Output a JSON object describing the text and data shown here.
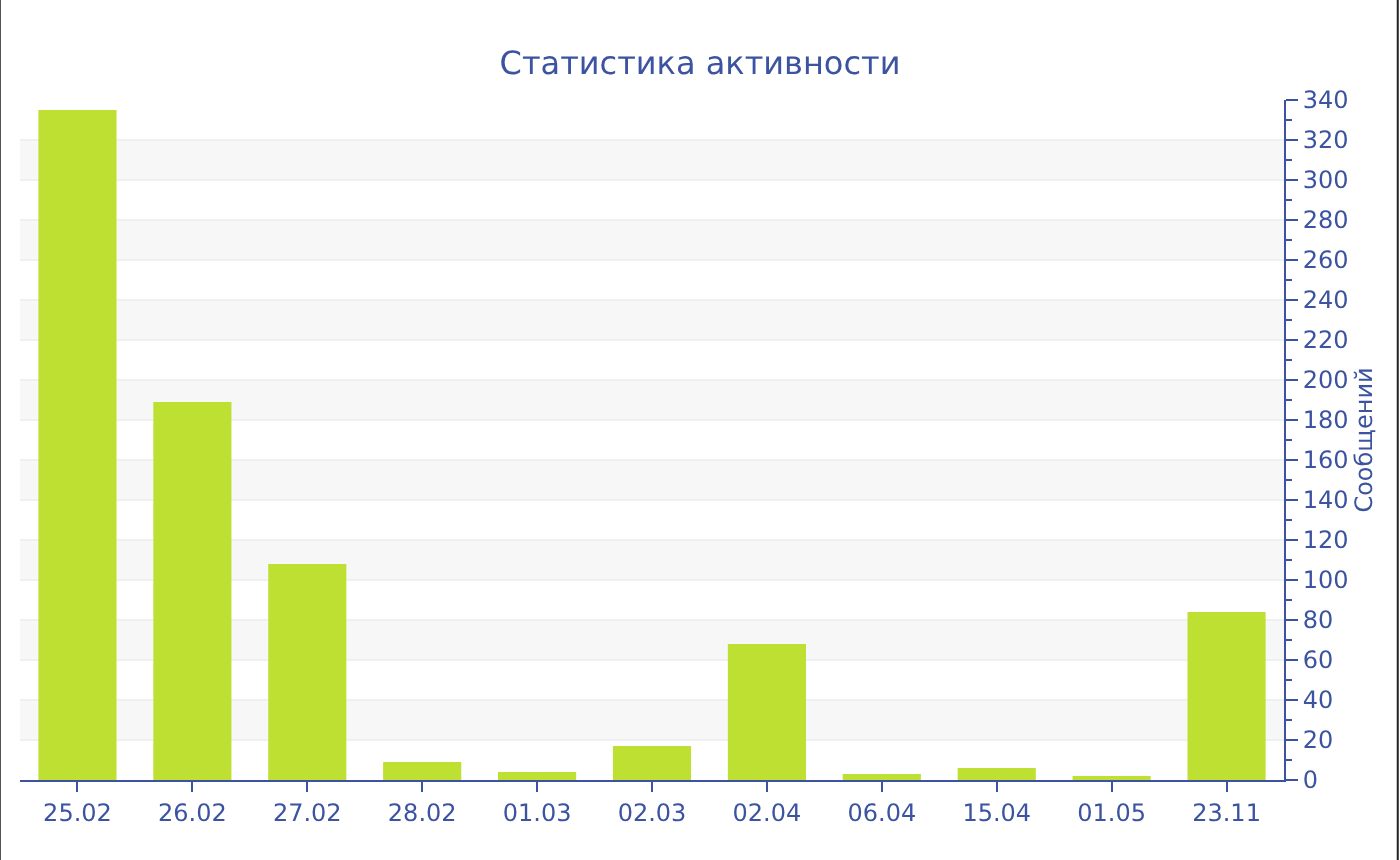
{
  "chart_data": {
    "type": "bar",
    "title": "Статистика активности",
    "ylabel": "Сообщений",
    "categories": [
      "25.02",
      "26.02",
      "27.02",
      "28.02",
      "01.03",
      "02.03",
      "02.04",
      "06.04",
      "15.04",
      "01.05",
      "23.11"
    ],
    "values": [
      335,
      189,
      108,
      9,
      4,
      17,
      68,
      3,
      6,
      2,
      84
    ],
    "color": "#bde032",
    "ylim": [
      0,
      340
    ],
    "yticks": [
      0,
      20,
      40,
      60,
      80,
      100,
      120,
      140,
      160,
      180,
      200,
      220,
      240,
      260,
      280,
      300,
      320,
      340
    ],
    "grid": "y",
    "legend": false
  }
}
